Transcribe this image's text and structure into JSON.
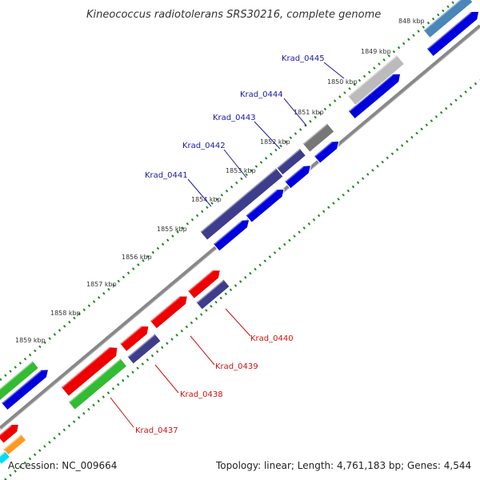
{
  "title": "Kineococcus radiotolerans SRS30216, complete genome",
  "footer": {
    "accession": "Accession: NC_009664",
    "summary": "Topology: linear; Length: 4,761,183 bp; Genes: 4,544"
  },
  "ticks": [
    "848 kbp",
    "1849 kbp",
    "1850 kbp",
    "1851 kbp",
    "1852 kbp",
    "1853 kbp",
    "1854 kbp",
    "1855 kbp",
    "1856 kbp",
    "1857 kbp",
    "1858 kbp",
    "1859 kbp"
  ],
  "gene_labels_top": [
    "Krad_0445",
    "Krad_0444",
    "Krad_0443",
    "Krad_0442",
    "Krad_0441"
  ],
  "gene_labels_bottom": [
    "Krad_0440",
    "Krad_0439",
    "Krad_0438",
    "Krad_0437"
  ],
  "colors": {
    "blue": "#0000dd",
    "navy": "#3d3d8c",
    "red": "#ee0000",
    "green": "#33bb33",
    "orange": "#ff9922",
    "cyan": "#00ddee",
    "grey": "#777777",
    "silver": "#bbbbbb",
    "steel": "#4a86b8",
    "tick_green": "#228822",
    "label_blue": "#1a1aa8",
    "label_red": "#cc1111"
  }
}
